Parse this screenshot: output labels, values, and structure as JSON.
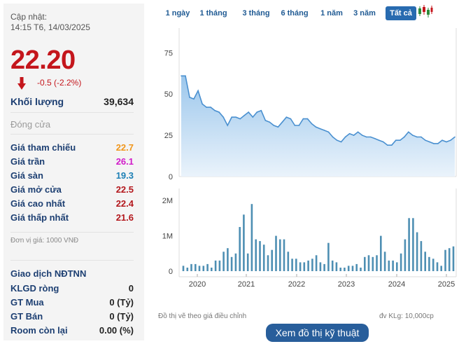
{
  "quote": {
    "updated_label": "Cập nhật:",
    "updated_time": "14:15 T6, 14/03/2025",
    "price": "22.20",
    "change": "-0.5 (-2.2%)",
    "volume_label": "Khối lượng",
    "volume_value": "39,634",
    "close_label": "Đóng cửa"
  },
  "price_info": [
    {
      "label": "Giá tham chiếu",
      "value": "22.7",
      "color": "#f0961b"
    },
    {
      "label": "Giá trần",
      "value": "26.1",
      "color": "#d11bc9"
    },
    {
      "label": "Giá sàn",
      "value": "19.3",
      "color": "#1c7fb5"
    },
    {
      "label": "Giá mở cửa",
      "value": "22.5",
      "color": "#b3171c"
    },
    {
      "label": "Giá cao nhất",
      "value": "22.4",
      "color": "#b3171c"
    },
    {
      "label": "Giá thấp nhất",
      "value": "21.6",
      "color": "#b3171c"
    }
  ],
  "unit_note": "Đơn vị giá: 1000 VNĐ",
  "foreign": {
    "title": "Giao dịch NĐTNN",
    "rows": [
      {
        "label": "KLGD ròng",
        "value": "0"
      },
      {
        "label": "GT Mua",
        "value": "0 (Tỷ)"
      },
      {
        "label": "GT Bán",
        "value": "0 (Tỷ)"
      },
      {
        "label": "Room còn lại",
        "value": "0.00 (%)"
      }
    ]
  },
  "tabs": [
    {
      "label": "1 ngày",
      "active": false
    },
    {
      "label": "1 tháng",
      "active": false
    },
    {
      "label": "3 tháng",
      "active": false
    },
    {
      "label": "6 tháng",
      "active": false
    },
    {
      "label": "1 năm",
      "active": false
    },
    {
      "label": "3 năm",
      "active": false
    },
    {
      "label": "Tất cả",
      "active": true
    }
  ],
  "icons": {
    "candlestick": "candlestick-chart-icon",
    "price_down": "down-arrow-icon"
  },
  "colors": {
    "price_down": "#c4161c",
    "accent": "#286bb0",
    "line": "#4a90d0",
    "area": "#cfe3f5",
    "bar": "#4e8fb3"
  },
  "chart_data": [
    {
      "type": "area",
      "series": [
        {
          "values": [
            61,
            61,
            48,
            47,
            52,
            44,
            42,
            42,
            40,
            39,
            36,
            31,
            36,
            36,
            35,
            37,
            39,
            36,
            39,
            40,
            34,
            33,
            31,
            30,
            33,
            36,
            35,
            31,
            31,
            35,
            35,
            32,
            30,
            29,
            28,
            27,
            24,
            22,
            21,
            24,
            26,
            25,
            27,
            25,
            24,
            24,
            23,
            22,
            21,
            19,
            19,
            22,
            22,
            24,
            27,
            25,
            24,
            24,
            22,
            21,
            20,
            20,
            22,
            21,
            22,
            24
          ]
        }
      ],
      "yticks": [
        0,
        25,
        50,
        75
      ],
      "ylim": [
        0,
        90
      ]
    },
    {
      "type": "bar",
      "series": [
        {
          "values": [
            0.15,
            0.1,
            0.2,
            0.2,
            0.15,
            0.15,
            0.2,
            0.1,
            0.3,
            0.3,
            0.55,
            0.65,
            0.4,
            0.5,
            1.25,
            1.6,
            0.5,
            1.9,
            0.9,
            0.85,
            0.75,
            0.45,
            0.6,
            1.0,
            0.9,
            0.9,
            0.55,
            0.35,
            0.35,
            0.25,
            0.25,
            0.3,
            0.35,
            0.45,
            0.25,
            0.2,
            0.8,
            0.3,
            0.25,
            0.1,
            0.1,
            0.15,
            0.15,
            0.2,
            0.1,
            0.4,
            0.45,
            0.4,
            0.45,
            1.0,
            0.55,
            0.3,
            0.3,
            0.25,
            0.5,
            0.9,
            1.5,
            1.5,
            1.1,
            0.85,
            0.55,
            0.4,
            0.35,
            0.25,
            0.15,
            0.6,
            0.65,
            0.7
          ]
        }
      ],
      "yticks": [
        "0",
        "1M",
        "2M"
      ],
      "ylim": [
        0,
        2.3
      ],
      "x_ticks": [
        "2020",
        "2021",
        "2022",
        "2023",
        "2024",
        "2025"
      ]
    }
  ],
  "notes": {
    "left": "Đồ thị vẽ theo giá điều chỉnh",
    "right": "đv KLg: 10,000cp"
  },
  "tech_button": "Xem đồ thị kỹ thuật"
}
